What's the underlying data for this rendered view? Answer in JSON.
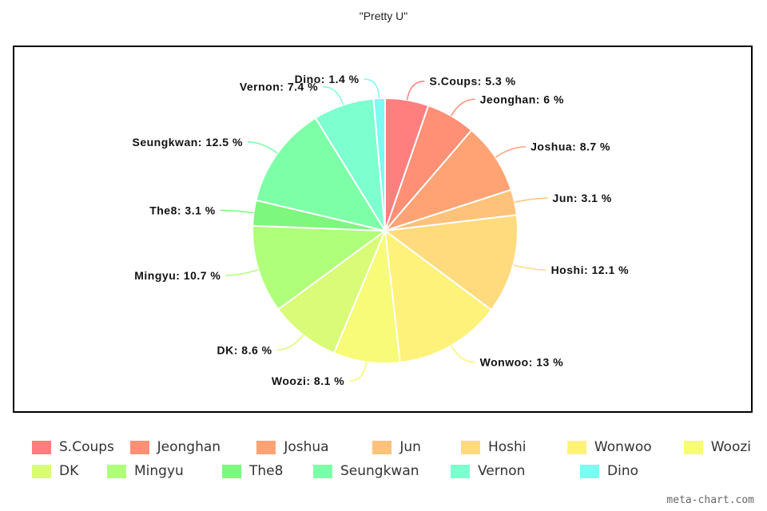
{
  "chart_data": {
    "type": "pie",
    "title": "\"Pretty U\"",
    "slices": [
      {
        "label": "S.Coups",
        "value": 5.3,
        "display": "S.Coups: 5.3 %",
        "color": "#ff7f7f"
      },
      {
        "label": "Jeonghan",
        "value": 6,
        "display": "Jeonghan: 6 %",
        "color": "#ff8f75"
      },
      {
        "label": "Joshua",
        "value": 8.7,
        "display": "Joshua: 8.7 %",
        "color": "#ffa375"
      },
      {
        "label": "Jun",
        "value": 3.1,
        "display": "Jun: 3.1 %",
        "color": "#ffc27a"
      },
      {
        "label": "Hoshi",
        "value": 12.1,
        "display": "Hoshi: 12.1 %",
        "color": "#ffdb7e"
      },
      {
        "label": "Wonwoo",
        "value": 13,
        "display": "Wonwoo: 13 %",
        "color": "#fff27a"
      },
      {
        "label": "Woozi",
        "value": 8.1,
        "display": "Woozi: 8.1 %",
        "color": "#f7fb78"
      },
      {
        "label": "DK",
        "value": 8.6,
        "display": "DK: 8.6 %",
        "color": "#d9fb78"
      },
      {
        "label": "Mingyu",
        "value": 10.7,
        "display": "Mingyu: 10.7 %",
        "color": "#b0ff7a"
      },
      {
        "label": "The8",
        "value": 3.1,
        "display": "The8: 3.1 %",
        "color": "#7df77d"
      },
      {
        "label": "Seungkwan",
        "value": 12.5,
        "display": "Seungkwan: 12.5 %",
        "color": "#7dffa8"
      },
      {
        "label": "Vernon",
        "value": 7.4,
        "display": "Vernon: 7.4 %",
        "color": "#7dffcf"
      },
      {
        "label": "Dino",
        "value": 1.4,
        "display": "Dino: 1.4 %",
        "color": "#7dfaf2"
      }
    ],
    "legend": "bottom"
  },
  "watermark": "meta-chart.com"
}
